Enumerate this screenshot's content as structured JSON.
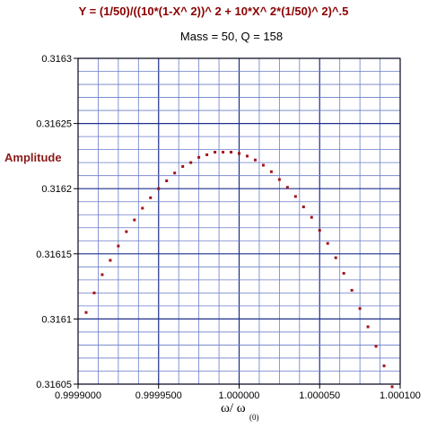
{
  "chart_data": {
    "type": "scatter",
    "title": "Y = (1/50)/((10*(1-X^ 2))^ 2 + 10*X^ 2*(1/50)^ 2)^.5",
    "subtitle": "Mass = 50,  Q = 158",
    "ylabel": "Amplitude",
    "xlabel_main": "ω/ ω",
    "xlabel_sub": "(0)",
    "xlim": [
      0.9999,
      1.0001
    ],
    "ylim": [
      0.31605,
      0.3163
    ],
    "x_ticks": [
      0.9999,
      0.99995,
      1.0,
      1.00005,
      1.0001
    ],
    "x_tick_labels": [
      "0.9999000",
      "0.9999500",
      "1.000000",
      "1.000050",
      "1.000100"
    ],
    "y_ticks": [
      0.31605,
      0.3161,
      0.31615,
      0.3162,
      0.31625,
      0.3163
    ],
    "y_tick_labels": [
      "0.31605",
      "0.3161",
      "0.31615",
      "0.3162",
      "0.31625",
      "0.3163"
    ],
    "grid": true,
    "marker_color": "#a0141e",
    "series": [
      {
        "x": [
          0.999905,
          0.99991,
          0.999915,
          0.99992,
          0.999925,
          0.99993,
          0.999935,
          0.99994,
          0.999945,
          0.99995,
          0.999955,
          0.99996,
          0.999965,
          0.99997,
          0.999975,
          0.99998,
          0.999985,
          0.99999,
          0.999995,
          1.0,
          1.000005,
          1.00001,
          1.000015,
          1.00002,
          1.000025,
          1.00003,
          1.000035,
          1.00004,
          1.000045,
          1.00005,
          1.000055,
          1.00006,
          1.000065,
          1.00007,
          1.000075,
          1.00008,
          1.000085,
          1.00009,
          1.000095
        ],
        "y": [
          0.316105,
          0.31612,
          0.316134,
          0.316145,
          0.316156,
          0.316167,
          0.316176,
          0.316185,
          0.316193,
          0.3162,
          0.316206,
          0.316212,
          0.316217,
          0.31622,
          0.316224,
          0.316226,
          0.316228,
          0.316228,
          0.316228,
          0.316227,
          0.316225,
          0.316222,
          0.316218,
          0.316213,
          0.316207,
          0.316201,
          0.316194,
          0.316186,
          0.316178,
          0.316168,
          0.316158,
          0.316147,
          0.316135,
          0.316122,
          0.316108,
          0.316094,
          0.316079,
          0.316064,
          0.316048
        ]
      }
    ]
  }
}
